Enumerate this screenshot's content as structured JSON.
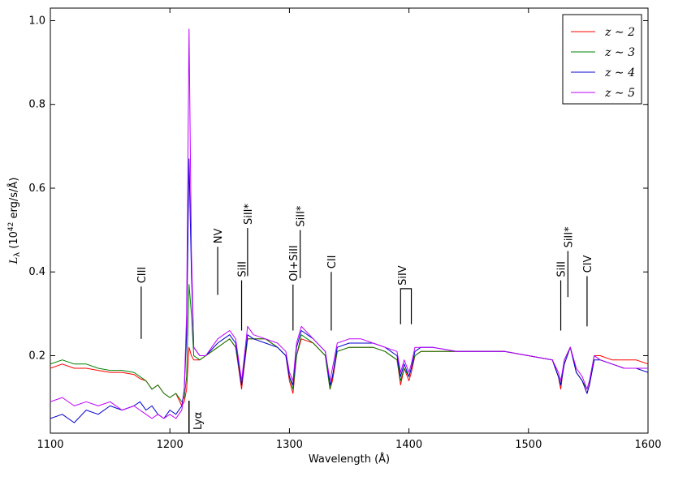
{
  "chart_data": {
    "type": "line",
    "xlabel": "Wavelength (Å)",
    "ylabel": {
      "symbol": "L",
      "subscript": "λ",
      "unit_open": " (10",
      "exponent": "42",
      "unit_close": " erg/s/Å)"
    },
    "xlim": [
      1100,
      1600
    ],
    "ylim": [
      0.015,
      1.03
    ],
    "x_ticks": [
      1100,
      1200,
      1300,
      1400,
      1500,
      1600
    ],
    "y_ticks": [
      0.2,
      0.4,
      0.6,
      0.8,
      1.0
    ],
    "x_tick_labels": [
      "1100",
      "1200",
      "1300",
      "1400",
      "1500",
      "1600"
    ],
    "y_tick_labels": [
      "0.2",
      "0.4",
      "0.6",
      "0.8",
      "1.0"
    ],
    "legend": {
      "position": "top-right"
    },
    "series": [
      {
        "name": "z ∼ 2",
        "color": "#ff0000",
        "x": [
          1100,
          1110,
          1120,
          1130,
          1140,
          1150,
          1160,
          1170,
          1175,
          1180,
          1185,
          1190,
          1195,
          1200,
          1205,
          1210,
          1212,
          1214,
          1216,
          1218,
          1220,
          1225,
          1230,
          1240,
          1245,
          1250,
          1255,
          1260,
          1265,
          1270,
          1280,
          1290,
          1297,
          1300,
          1303,
          1306,
          1310,
          1320,
          1330,
          1334,
          1336,
          1340,
          1350,
          1360,
          1370,
          1380,
          1390,
          1393,
          1396,
          1400,
          1402,
          1405,
          1410,
          1420,
          1440,
          1460,
          1480,
          1500,
          1520,
          1525,
          1527,
          1530,
          1535,
          1540,
          1545,
          1549,
          1551,
          1555,
          1560,
          1570,
          1580,
          1590,
          1600
        ],
        "y": [
          0.17,
          0.18,
          0.17,
          0.17,
          0.165,
          0.16,
          0.16,
          0.155,
          0.145,
          0.14,
          0.12,
          0.13,
          0.11,
          0.1,
          0.11,
          0.08,
          0.09,
          0.12,
          0.22,
          0.2,
          0.19,
          0.19,
          0.2,
          0.22,
          0.23,
          0.24,
          0.22,
          0.12,
          0.24,
          0.24,
          0.24,
          0.22,
          0.2,
          0.14,
          0.11,
          0.2,
          0.24,
          0.23,
          0.2,
          0.12,
          0.14,
          0.21,
          0.22,
          0.22,
          0.22,
          0.21,
          0.19,
          0.13,
          0.17,
          0.14,
          0.16,
          0.2,
          0.21,
          0.21,
          0.21,
          0.21,
          0.21,
          0.2,
          0.19,
          0.15,
          0.12,
          0.19,
          0.22,
          0.16,
          0.14,
          0.11,
          0.13,
          0.2,
          0.2,
          0.19,
          0.19,
          0.19,
          0.18
        ]
      },
      {
        "name": "z ∼ 3",
        "color": "#008000",
        "x": [
          1100,
          1110,
          1120,
          1130,
          1140,
          1150,
          1160,
          1170,
          1175,
          1180,
          1185,
          1190,
          1195,
          1200,
          1205,
          1210,
          1212,
          1214,
          1216,
          1218,
          1220,
          1225,
          1230,
          1240,
          1245,
          1250,
          1255,
          1260,
          1265,
          1270,
          1280,
          1290,
          1297,
          1300,
          1303,
          1306,
          1310,
          1320,
          1330,
          1334,
          1336,
          1340,
          1350,
          1360,
          1370,
          1380,
          1390,
          1393,
          1396,
          1400,
          1402,
          1405,
          1410,
          1420,
          1440,
          1460,
          1480,
          1500,
          1520,
          1525,
          1527,
          1530,
          1535,
          1540,
          1545,
          1549,
          1551,
          1555,
          1560,
          1570,
          1580,
          1590,
          1600
        ],
        "y": [
          0.18,
          0.19,
          0.18,
          0.18,
          0.17,
          0.165,
          0.165,
          0.16,
          0.15,
          0.14,
          0.12,
          0.13,
          0.11,
          0.1,
          0.11,
          0.09,
          0.1,
          0.15,
          0.37,
          0.3,
          0.2,
          0.19,
          0.2,
          0.22,
          0.23,
          0.24,
          0.22,
          0.13,
          0.24,
          0.24,
          0.24,
          0.22,
          0.2,
          0.15,
          0.12,
          0.2,
          0.25,
          0.23,
          0.2,
          0.12,
          0.15,
          0.21,
          0.22,
          0.22,
          0.22,
          0.21,
          0.19,
          0.14,
          0.17,
          0.15,
          0.17,
          0.2,
          0.21,
          0.21,
          0.21,
          0.21,
          0.21,
          0.2,
          0.19,
          0.15,
          0.13,
          0.19,
          0.22,
          0.16,
          0.14,
          0.12,
          0.14,
          0.2,
          0.19,
          0.18,
          0.17,
          0.17,
          0.17
        ]
      },
      {
        "name": "z ∼ 4",
        "color": "#0000cc",
        "x": [
          1100,
          1110,
          1120,
          1130,
          1140,
          1150,
          1160,
          1170,
          1175,
          1180,
          1185,
          1190,
          1195,
          1200,
          1205,
          1210,
          1212,
          1214,
          1216,
          1218,
          1220,
          1225,
          1230,
          1240,
          1245,
          1250,
          1255,
          1260,
          1265,
          1270,
          1280,
          1290,
          1297,
          1300,
          1303,
          1306,
          1310,
          1320,
          1330,
          1334,
          1336,
          1340,
          1350,
          1360,
          1370,
          1380,
          1390,
          1393,
          1396,
          1400,
          1402,
          1405,
          1410,
          1420,
          1440,
          1460,
          1480,
          1500,
          1520,
          1525,
          1527,
          1530,
          1535,
          1540,
          1545,
          1549,
          1551,
          1555,
          1560,
          1570,
          1580,
          1590,
          1600
        ],
        "y": [
          0.05,
          0.06,
          0.04,
          0.07,
          0.06,
          0.08,
          0.07,
          0.08,
          0.09,
          0.07,
          0.08,
          0.06,
          0.05,
          0.07,
          0.06,
          0.08,
          0.12,
          0.25,
          0.67,
          0.4,
          0.22,
          0.2,
          0.2,
          0.23,
          0.24,
          0.25,
          0.23,
          0.13,
          0.25,
          0.24,
          0.23,
          0.22,
          0.2,
          0.15,
          0.13,
          0.22,
          0.26,
          0.24,
          0.21,
          0.13,
          0.15,
          0.22,
          0.23,
          0.23,
          0.23,
          0.22,
          0.2,
          0.15,
          0.18,
          0.15,
          0.17,
          0.21,
          0.22,
          0.22,
          0.21,
          0.21,
          0.21,
          0.2,
          0.19,
          0.15,
          0.13,
          0.18,
          0.22,
          0.16,
          0.14,
          0.11,
          0.13,
          0.19,
          0.19,
          0.18,
          0.17,
          0.17,
          0.16
        ]
      },
      {
        "name": "z ∼ 5",
        "color": "#bf00ff",
        "x": [
          1100,
          1110,
          1120,
          1130,
          1140,
          1150,
          1160,
          1170,
          1175,
          1180,
          1185,
          1190,
          1195,
          1200,
          1205,
          1210,
          1212,
          1214,
          1216,
          1218,
          1220,
          1225,
          1230,
          1240,
          1245,
          1250,
          1255,
          1260,
          1265,
          1270,
          1280,
          1290,
          1297,
          1300,
          1303,
          1306,
          1310,
          1320,
          1330,
          1334,
          1336,
          1340,
          1350,
          1360,
          1370,
          1380,
          1390,
          1393,
          1396,
          1400,
          1402,
          1405,
          1410,
          1420,
          1440,
          1460,
          1480,
          1500,
          1520,
          1525,
          1527,
          1530,
          1535,
          1540,
          1545,
          1549,
          1551,
          1555,
          1560,
          1570,
          1580,
          1590,
          1600
        ],
        "y": [
          0.09,
          0.1,
          0.08,
          0.09,
          0.08,
          0.09,
          0.07,
          0.08,
          0.07,
          0.06,
          0.05,
          0.06,
          0.05,
          0.06,
          0.05,
          0.07,
          0.12,
          0.3,
          0.98,
          0.45,
          0.22,
          0.2,
          0.2,
          0.24,
          0.25,
          0.26,
          0.24,
          0.14,
          0.27,
          0.25,
          0.24,
          0.23,
          0.21,
          0.16,
          0.14,
          0.23,
          0.27,
          0.24,
          0.21,
          0.14,
          0.17,
          0.23,
          0.24,
          0.24,
          0.23,
          0.22,
          0.21,
          0.16,
          0.19,
          0.16,
          0.18,
          0.22,
          0.22,
          0.22,
          0.21,
          0.21,
          0.21,
          0.2,
          0.19,
          0.16,
          0.14,
          0.19,
          0.22,
          0.17,
          0.15,
          0.12,
          0.14,
          0.2,
          0.19,
          0.18,
          0.17,
          0.17,
          0.17
        ]
      }
    ],
    "line_markers": [
      {
        "label": "CIII",
        "x": 1176,
        "y_start": 0.24,
        "y_end": 0.365
      },
      {
        "label": "NV",
        "x": 1240,
        "y_start": 0.345,
        "y_end": 0.46
      },
      {
        "label": "SiII",
        "x": 1260,
        "y_start": 0.26,
        "y_end": 0.38
      },
      {
        "label": "SiII*",
        "x": 1265,
        "y_start": 0.39,
        "y_end": 0.505
      },
      {
        "label": "OI+SiII",
        "x": 1303,
        "y_start": 0.26,
        "y_end": 0.37
      },
      {
        "label": "SiII*",
        "x": 1309,
        "y_start": 0.385,
        "y_end": 0.5
      },
      {
        "label": "CII",
        "x": 1335,
        "y_start": 0.26,
        "y_end": 0.4
      },
      {
        "label": "SiIV",
        "x": 1394,
        "y_start": 0.275,
        "y_end": 0.36
      },
      {
        "label": "SiII",
        "x": 1527,
        "y_start": 0.26,
        "y_end": 0.38
      },
      {
        "label": "SiII*",
        "x": 1533,
        "y_start": 0.34,
        "y_end": 0.45
      },
      {
        "label": "CIV",
        "x": 1549,
        "y_start": 0.27,
        "y_end": 0.39
      }
    ],
    "siiv_bracket": {
      "x1": 1393,
      "x2": 1402,
      "y_bar": 0.36,
      "y_start": 0.275
    },
    "lya_marker": {
      "label": "Lyα",
      "x": 1216
    }
  }
}
